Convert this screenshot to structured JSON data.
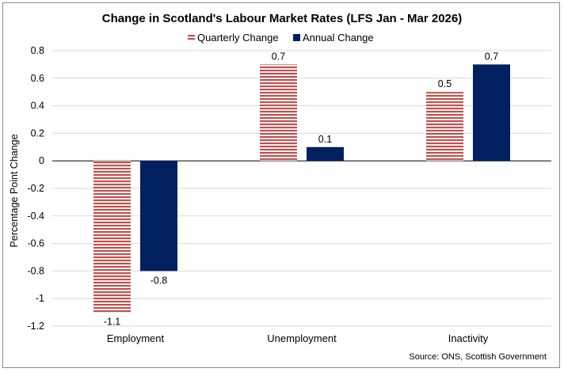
{
  "chart_data": {
    "type": "bar",
    "title": "Change in Scotland's Labour Market Rates (LFS Jan - Mar 2026)",
    "ylabel": "Percentage Point Change",
    "xlabel": "",
    "categories": [
      "Employment",
      "Unemployment",
      "Inactivity"
    ],
    "series": [
      {
        "name": "Quarterly Change",
        "values": [
          -1.1,
          0.7,
          0.5
        ],
        "labels": [
          "-1.1",
          "0.7",
          "0.5"
        ],
        "color": "#c0504d",
        "pattern": "horizontal-stripes"
      },
      {
        "name": "Annual Change",
        "values": [
          -0.8,
          0.1,
          0.7
        ],
        "labels": [
          "-0.8",
          "0.1",
          "0.7"
        ],
        "color": "#002060",
        "pattern": "solid"
      }
    ],
    "ylim": [
      -1.2,
      0.8
    ],
    "yticks": [
      "0.8",
      "0.6",
      "0.4",
      "0.2",
      "0",
      "-0.2",
      "-0.4",
      "-0.6",
      "-0.8",
      "-1",
      "-1.2"
    ],
    "ytick_values": [
      0.8,
      0.6,
      0.4,
      0.2,
      0,
      -0.2,
      -0.4,
      -0.6,
      -0.8,
      -1,
      -1.2
    ],
    "grid": true,
    "legend_position": "top-center",
    "source": "Source: ONS, Scottish Government"
  }
}
